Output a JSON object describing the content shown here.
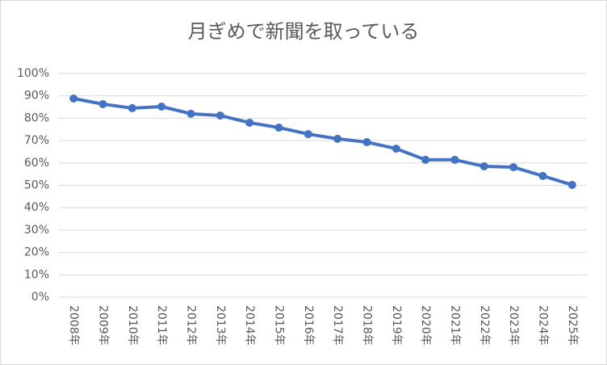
{
  "chart_data": {
    "type": "line",
    "title": "月ぎめで新聞を取っている",
    "categories": [
      "2008年",
      "2009年",
      "2010年",
      "2011年",
      "2012年",
      "2013年",
      "2014年",
      "2015年",
      "2016年",
      "2017年",
      "2018年",
      "2019年",
      "2020年",
      "2021年",
      "2022年",
      "2023年",
      "2024年",
      "2025年"
    ],
    "series": [
      {
        "name": "月ぎめで新聞を取っている",
        "color": "#4472c4",
        "values": [
          88.8,
          86.3,
          84.5,
          85.2,
          82,
          81.2,
          78,
          75.8,
          72.9,
          70.8,
          69.3,
          66.4,
          61.4,
          61.4,
          58.5,
          58.1,
          54.2,
          50.2
        ]
      }
    ],
    "ylim": [
      0,
      100
    ],
    "yticks": [
      {
        "value": 0,
        "label": "0%"
      },
      {
        "value": 10,
        "label": "10%"
      },
      {
        "value": 20,
        "label": "20%"
      },
      {
        "value": 30,
        "label": "30%"
      },
      {
        "value": 40,
        "label": "40%"
      },
      {
        "value": 50,
        "label": "50%"
      },
      {
        "value": 60,
        "label": "60%"
      },
      {
        "value": 70,
        "label": "70%"
      },
      {
        "value": 80,
        "label": "80%"
      },
      {
        "value": 90,
        "label": "90%"
      },
      {
        "value": 100,
        "label": "100%"
      }
    ],
    "grid": true
  }
}
